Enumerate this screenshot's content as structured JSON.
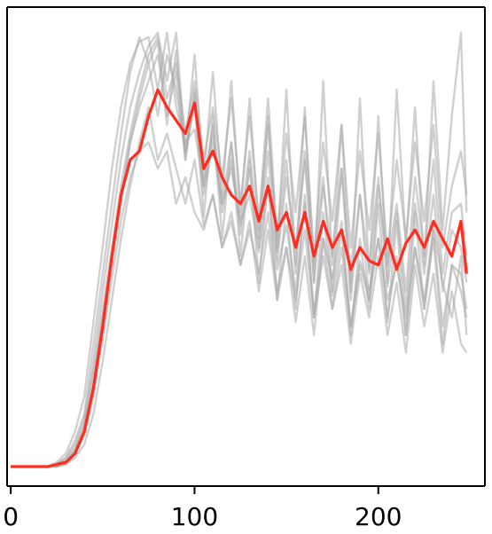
{
  "chart_data": {
    "type": "line",
    "title": "",
    "xlabel": "",
    "ylabel": "",
    "xlim": [
      -2,
      258
    ],
    "ylim": [
      0,
      100
    ],
    "x_ticks": [
      0,
      100,
      200
    ],
    "x_tick_labels": [
      "0",
      "100",
      "200"
    ],
    "y_ticks": [],
    "grid": false,
    "legend": "none",
    "colors": {
      "mean": "#ff2d20",
      "runs": "#a9a9a9",
      "axis": "#000000"
    },
    "x": [
      0,
      5,
      10,
      15,
      20,
      25,
      30,
      35,
      40,
      45,
      50,
      55,
      60,
      65,
      70,
      75,
      80,
      85,
      90,
      95,
      100,
      105,
      110,
      115,
      120,
      125,
      130,
      135,
      140,
      145,
      150,
      155,
      160,
      165,
      170,
      175,
      180,
      185,
      190,
      195,
      200,
      205,
      210,
      215,
      220,
      225,
      230,
      235,
      240,
      245,
      248
    ],
    "series": [
      {
        "role": "mean",
        "values": [
          0,
          0,
          0,
          0,
          0,
          0.5,
          1,
          3,
          8,
          18,
          32,
          48,
          62,
          70,
          72,
          80,
          86,
          82,
          79,
          76,
          83,
          68,
          72,
          66,
          62,
          60,
          64,
          56,
          64,
          54,
          58,
          50,
          58,
          48,
          56,
          50,
          54,
          45,
          50,
          47,
          46,
          52,
          45,
          51,
          54,
          50,
          56,
          52,
          48,
          56,
          44
        ]
      },
      {
        "role": "run",
        "values": [
          0,
          0,
          0,
          0,
          0,
          1,
          3,
          8,
          16,
          33,
          50,
          68,
          82,
          92,
          97,
          98,
          86,
          99,
          82,
          74,
          77,
          64,
          76,
          60,
          68,
          56,
          62,
          49,
          64,
          45,
          55,
          40,
          60,
          35,
          52,
          43,
          56,
          32,
          47,
          40,
          52,
          38,
          46,
          34,
          50,
          38,
          55,
          42,
          34,
          48,
          30
        ]
      },
      {
        "role": "run",
        "values": [
          0,
          0,
          0,
          0,
          0,
          0.5,
          2,
          6,
          12,
          28,
          44,
          60,
          76,
          90,
          98,
          92,
          97,
          78,
          95,
          70,
          85,
          57,
          80,
          52,
          74,
          48,
          70,
          42,
          66,
          38,
          60,
          36,
          62,
          34,
          58,
          39,
          54,
          30,
          52,
          36,
          60,
          33,
          56,
          30,
          58,
          36,
          52,
          28,
          46,
          40,
          34
        ]
      },
      {
        "role": "run",
        "values": [
          0,
          0,
          0,
          0,
          0,
          0,
          1,
          4,
          10,
          24,
          40,
          55,
          70,
          82,
          90,
          96,
          99,
          88,
          99,
          72,
          94,
          66,
          90,
          62,
          88,
          58,
          84,
          54,
          80,
          50,
          86,
          46,
          82,
          42,
          88,
          46,
          78,
          40,
          84,
          44,
          80,
          42,
          86,
          50,
          82,
          46,
          88,
          54,
          80,
          99,
          58
        ]
      },
      {
        "role": "run",
        "values": [
          0,
          0,
          0,
          0,
          0,
          0,
          0.5,
          3,
          7,
          16,
          30,
          46,
          60,
          74,
          84,
          92,
          80,
          94,
          86,
          72,
          82,
          62,
          74,
          58,
          70,
          53,
          68,
          50,
          72,
          47,
          66,
          50,
          70,
          42,
          64,
          48,
          68,
          38,
          62,
          45,
          66,
          41,
          58,
          36,
          60,
          44,
          62,
          40,
          54,
          50,
          42
        ]
      },
      {
        "role": "run",
        "values": [
          0,
          0,
          0,
          0,
          0,
          0,
          0.5,
          2,
          5,
          12,
          24,
          38,
          52,
          64,
          74,
          82,
          70,
          76,
          68,
          60,
          70,
          55,
          62,
          50,
          58,
          46,
          56,
          40,
          54,
          38,
          50,
          33,
          48,
          30,
          52,
          36,
          46,
          28,
          44,
          34,
          48,
          30,
          42,
          26,
          46,
          32,
          44,
          26,
          40,
          28,
          26
        ]
      },
      {
        "role": "run",
        "values": [
          0,
          0,
          0,
          0,
          0,
          0.5,
          2,
          5,
          11,
          22,
          36,
          50,
          64,
          76,
          86,
          94,
          98,
          84,
          92,
          76,
          88,
          70,
          82,
          66,
          84,
          60,
          80,
          56,
          84,
          52,
          76,
          58,
          80,
          48,
          74,
          56,
          78,
          50,
          72,
          54,
          76,
          48,
          70,
          52,
          74,
          56,
          78,
          50,
          64,
          72,
          62
        ]
      },
      {
        "role": "run",
        "values": [
          0,
          0,
          0,
          0,
          0,
          0,
          1,
          3,
          8,
          17,
          29,
          43,
          56,
          66,
          72,
          74,
          68,
          72,
          60,
          66,
          58,
          54,
          62,
          50,
          56,
          46,
          54,
          44,
          58,
          40,
          50,
          38,
          54,
          34,
          48,
          36,
          50,
          32,
          46,
          38,
          52,
          34,
          48,
          30,
          50,
          36,
          54,
          32,
          46,
          44,
          36
        ]
      },
      {
        "role": "run",
        "values": [
          0,
          0,
          0,
          0,
          0,
          0.5,
          1.5,
          4,
          9,
          20,
          34,
          48,
          62,
          74,
          82,
          88,
          94,
          80,
          90,
          70,
          86,
          64,
          78,
          60,
          74,
          55,
          72,
          52,
          78,
          49,
          70,
          44,
          72,
          46,
          66,
          40,
          68,
          42,
          62,
          38,
          64,
          46,
          60,
          40,
          66,
          48,
          70,
          44,
          58,
          60,
          48
        ]
      }
    ]
  }
}
